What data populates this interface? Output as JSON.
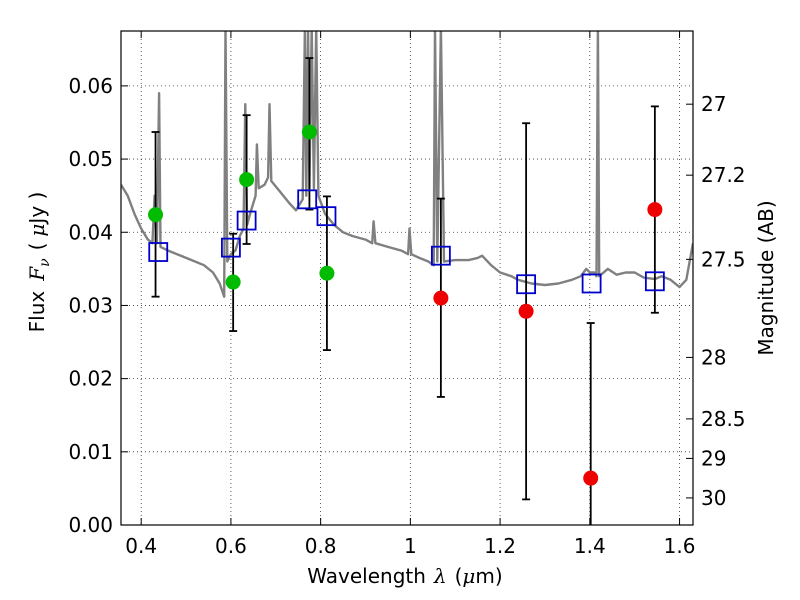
{
  "chart_data": {
    "type": "scatter",
    "xlabel": {
      "prefix": "Wavelength",
      "symbol": "λ",
      "unit_open": "(",
      "unit_mu": "μ",
      "unit_rest": "m)"
    },
    "ylabel": {
      "prefix": "Flux",
      "symbol": "F",
      "sub": "ν",
      "unit_open": "(",
      "unit_mu": "μ",
      "unit_rest": "Jy )"
    },
    "y2label": "Magnitude (AB)",
    "xlim": [
      0.355,
      1.63
    ],
    "ylim": [
      0.0,
      0.0675
    ],
    "grid": true,
    "x_ticks": [
      {
        "value": 0.4,
        "label": "0.4"
      },
      {
        "value": 0.6,
        "label": "0.6"
      },
      {
        "value": 0.8,
        "label": "0.8"
      },
      {
        "value": 1.0,
        "label": "1"
      },
      {
        "value": 1.2,
        "label": "1.2"
      },
      {
        "value": 1.4,
        "label": "1.4"
      },
      {
        "value": 1.6,
        "label": "1.6"
      }
    ],
    "y_ticks": [
      {
        "value": 0.0,
        "label": "0.00"
      },
      {
        "value": 0.01,
        "label": "0.01"
      },
      {
        "value": 0.02,
        "label": "0.02"
      },
      {
        "value": 0.03,
        "label": "0.03"
      },
      {
        "value": 0.04,
        "label": "0.04"
      },
      {
        "value": 0.05,
        "label": "0.05"
      },
      {
        "value": 0.06,
        "label": "0.06"
      }
    ],
    "y2_ticks": [
      {
        "label": "27",
        "flux": 0.0575
      },
      {
        "label": "27.2",
        "flux": 0.0478
      },
      {
        "label": "27.5",
        "flux": 0.0363
      },
      {
        "label": "28",
        "flux": 0.0229
      },
      {
        "label": "28.5",
        "flux": 0.0145
      },
      {
        "label": "29",
        "flux": 0.0091
      },
      {
        "label": "30",
        "flux": 0.0037
      }
    ],
    "colors": {
      "spectrum": "#808080",
      "model": "#0000cc",
      "detected": "#00bb00",
      "undetected": "#ee0000",
      "errorbar": "#000000",
      "grid": "#333333"
    },
    "model_sed": [
      {
        "x": 0.438,
        "y": 0.0373
      },
      {
        "x": 0.6,
        "y": 0.0379
      },
      {
        "x": 0.635,
        "y": 0.0416
      },
      {
        "x": 0.77,
        "y": 0.0445
      },
      {
        "x": 0.813,
        "y": 0.0422
      },
      {
        "x": 1.068,
        "y": 0.0368
      },
      {
        "x": 1.258,
        "y": 0.0329
      },
      {
        "x": 1.404,
        "y": 0.033
      },
      {
        "x": 1.545,
        "y": 0.0333
      }
    ],
    "observed": [
      {
        "x": 0.432,
        "y": 0.0424,
        "ylow": 0.0312,
        "yhigh": 0.0537,
        "detected": true
      },
      {
        "x": 0.605,
        "y": 0.0332,
        "ylow": 0.0265,
        "yhigh": 0.0398,
        "detected": true
      },
      {
        "x": 0.635,
        "y": 0.0472,
        "ylow": 0.0384,
        "yhigh": 0.056,
        "detected": true
      },
      {
        "x": 0.775,
        "y": 0.0537,
        "ylow": 0.0431,
        "yhigh": 0.0638,
        "detected": true
      },
      {
        "x": 0.814,
        "y": 0.0344,
        "ylow": 0.0239,
        "yhigh": 0.0449,
        "detected": true
      },
      {
        "x": 1.068,
        "y": 0.031,
        "ylow": 0.0175,
        "yhigh": 0.0446,
        "detected": false
      },
      {
        "x": 1.258,
        "y": 0.0292,
        "ylow": 0.0035,
        "yhigh": 0.0549,
        "detected": false
      },
      {
        "x": 1.402,
        "y": 0.0064,
        "ylow": -0.0148,
        "yhigh": 0.0276,
        "detected": false
      },
      {
        "x": 1.545,
        "y": 0.0431,
        "ylow": 0.029,
        "yhigh": 0.0572,
        "detected": false
      }
    ],
    "spectrum": [
      [
        0.355,
        0.0465
      ],
      [
        0.37,
        0.045
      ],
      [
        0.385,
        0.0425
      ],
      [
        0.4,
        0.0405
      ],
      [
        0.415,
        0.039
      ],
      [
        0.425,
        0.0385
      ],
      [
        0.43,
        0.045
      ],
      [
        0.435,
        0.0385
      ],
      [
        0.44,
        0.059
      ],
      [
        0.443,
        0.038
      ],
      [
        0.46,
        0.0375
      ],
      [
        0.48,
        0.037
      ],
      [
        0.5,
        0.0365
      ],
      [
        0.52,
        0.036
      ],
      [
        0.54,
        0.0355
      ],
      [
        0.56,
        0.0345
      ],
      [
        0.575,
        0.033
      ],
      [
        0.585,
        0.0312
      ],
      [
        0.588,
        0.068
      ],
      [
        0.592,
        0.036
      ],
      [
        0.6,
        0.037
      ],
      [
        0.61,
        0.0375
      ],
      [
        0.62,
        0.0395
      ],
      [
        0.628,
        0.0405
      ],
      [
        0.632,
        0.0575
      ],
      [
        0.636,
        0.041
      ],
      [
        0.645,
        0.043
      ],
      [
        0.655,
        0.045
      ],
      [
        0.658,
        0.052
      ],
      [
        0.662,
        0.046
      ],
      [
        0.675,
        0.0465
      ],
      [
        0.683,
        0.0475
      ],
      [
        0.686,
        0.0575
      ],
      [
        0.69,
        0.047
      ],
      [
        0.71,
        0.0455
      ],
      [
        0.73,
        0.044
      ],
      [
        0.745,
        0.043
      ],
      [
        0.76,
        0.0445
      ],
      [
        0.765,
        0.068
      ],
      [
        0.768,
        0.045
      ],
      [
        0.772,
        0.068
      ],
      [
        0.775,
        0.046
      ],
      [
        0.78,
        0.068
      ],
      [
        0.785,
        0.046
      ],
      [
        0.79,
        0.068
      ],
      [
        0.795,
        0.045
      ],
      [
        0.81,
        0.0425
      ],
      [
        0.83,
        0.041
      ],
      [
        0.85,
        0.04
      ],
      [
        0.87,
        0.0395
      ],
      [
        0.9,
        0.039
      ],
      [
        0.915,
        0.0385
      ],
      [
        0.918,
        0.0415
      ],
      [
        0.922,
        0.0385
      ],
      [
        0.95,
        0.038
      ],
      [
        0.98,
        0.0375
      ],
      [
        0.995,
        0.037
      ],
      [
        0.998,
        0.0405
      ],
      [
        1.002,
        0.037
      ],
      [
        1.02,
        0.0365
      ],
      [
        1.04,
        0.036
      ],
      [
        1.052,
        0.0355
      ],
      [
        1.055,
        0.068
      ],
      [
        1.06,
        0.036
      ],
      [
        1.068,
        0.068
      ],
      [
        1.075,
        0.036
      ],
      [
        1.1,
        0.0362
      ],
      [
        1.13,
        0.0362
      ],
      [
        1.15,
        0.0365
      ],
      [
        1.16,
        0.0368
      ],
      [
        1.18,
        0.0355
      ],
      [
        1.2,
        0.0345
      ],
      [
        1.225,
        0.034
      ],
      [
        1.24,
        0.0335
      ],
      [
        1.27,
        0.033
      ],
      [
        1.3,
        0.0328
      ],
      [
        1.33,
        0.033
      ],
      [
        1.36,
        0.0335
      ],
      [
        1.38,
        0.034
      ],
      [
        1.392,
        0.035
      ],
      [
        1.4,
        0.0345
      ],
      [
        1.41,
        0.0345
      ],
      [
        1.415,
        0.034
      ],
      [
        1.418,
        0.068
      ],
      [
        1.421,
        0.034
      ],
      [
        1.44,
        0.035
      ],
      [
        1.46,
        0.0342
      ],
      [
        1.48,
        0.0345
      ],
      [
        1.5,
        0.0345
      ],
      [
        1.52,
        0.0338
      ],
      [
        1.545,
        0.0336
      ],
      [
        1.56,
        0.034
      ],
      [
        1.58,
        0.0335
      ],
      [
        1.6,
        0.0325
      ],
      [
        1.615,
        0.0335
      ],
      [
        1.63,
        0.0385
      ]
    ]
  }
}
